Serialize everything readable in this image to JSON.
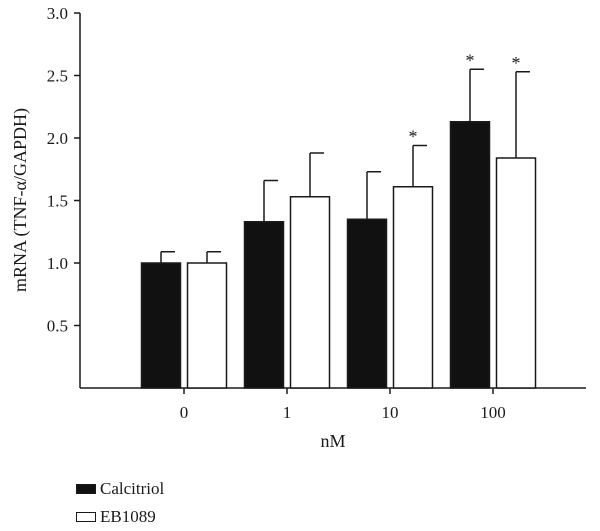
{
  "chart_data": {
    "type": "bar",
    "xlabel": "nM",
    "ylabel": "mRNA (TNF-α/GAPDH)",
    "ylim": [
      0,
      3.0
    ],
    "yticks": [
      "0.5",
      "1.0",
      "1.5",
      "2.0",
      "2.5",
      "3.0"
    ],
    "categories": [
      "0",
      "1",
      "10",
      "100"
    ],
    "grid": false,
    "legend_position": "bottom-left",
    "series": [
      {
        "name": "Calcitriol",
        "color": "#111111",
        "values": [
          1.0,
          1.33,
          1.35,
          2.13
        ],
        "errors": [
          0.09,
          0.33,
          0.38,
          0.42
        ],
        "significance": [
          "",
          "",
          "",
          "*"
        ]
      },
      {
        "name": "EB1089",
        "color": "#ffffff",
        "values": [
          1.0,
          1.53,
          1.61,
          1.84
        ],
        "errors": [
          0.09,
          0.35,
          0.33,
          0.69
        ],
        "significance": [
          "",
          "",
          "*",
          "*"
        ]
      }
    ]
  }
}
